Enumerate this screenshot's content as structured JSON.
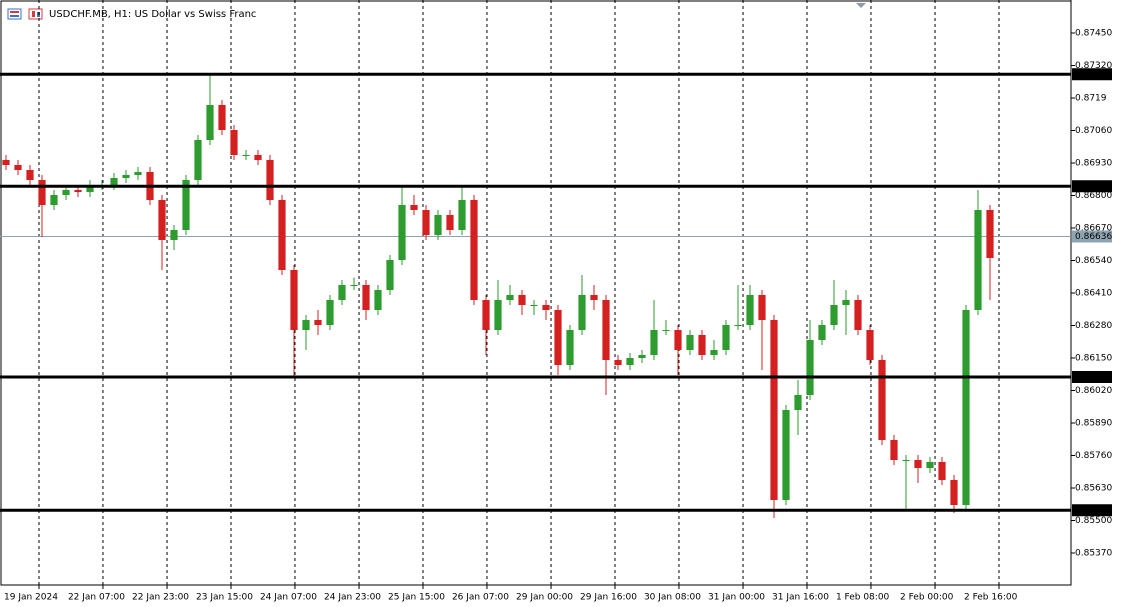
{
  "chart_data": {
    "type": "candlestick",
    "title": "USDCHF.MB, H1:  US Dollar vs Swiss Franc",
    "up_color": "#2e9b2e",
    "down_color": "#d42020",
    "open": [
      0.86942,
      0.86922,
      0.86902,
      0.86862,
      0.86762,
      0.86802,
      0.86822,
      0.86814,
      0.86842,
      0.86842,
      0.8687,
      0.86882,
      0.86894,
      0.86782,
      0.86622,
      0.86662,
      0.86862,
      0.87022,
      0.87162,
      0.87062,
      0.86962,
      0.86962,
      0.86942,
      0.86782,
      0.86502,
      0.86262,
      0.86302,
      0.86282,
      0.86382,
      0.86442,
      0.86442,
      0.86342,
      0.86422,
      0.86542,
      0.86762,
      0.86742,
      0.86642,
      0.86722,
      0.86662,
      0.86782,
      0.86382,
      0.86262,
      0.86382,
      0.86402,
      0.86362,
      0.86362,
      0.86342,
      0.86122,
      0.86262,
      0.86402,
      0.86382,
      0.86142,
      0.86122,
      0.8615,
      0.86162,
      0.86262,
      0.86262,
      0.86182,
      0.86242,
      0.86162,
      0.86182,
      0.86282,
      0.86282,
      0.86402,
      0.86302,
      0.85582,
      0.85942,
      0.86002,
      0.86222,
      0.86282,
      0.86362,
      0.86382,
      0.86262,
      0.86142,
      0.85822,
      0.85742,
      0.85742,
      0.8571,
      0.85734,
      0.85662,
      0.85562,
      0.86342,
      0.86742
    ],
    "high": [
      0.86962,
      0.86942,
      0.86922,
      0.86882,
      0.86822,
      0.86842,
      0.86842,
      0.86862,
      0.86862,
      0.8689,
      0.86902,
      0.86914,
      0.86914,
      0.86802,
      0.86682,
      0.86882,
      0.87042,
      0.87282,
      0.87182,
      0.87082,
      0.86982,
      0.86982,
      0.86962,
      0.86802,
      0.86522,
      0.86322,
      0.86342,
      0.86402,
      0.86462,
      0.86472,
      0.86462,
      0.86442,
      0.86562,
      0.86842,
      0.86802,
      0.86762,
      0.86742,
      0.86742,
      0.86842,
      0.86802,
      0.86402,
      0.86462,
      0.86442,
      0.86422,
      0.86382,
      0.86382,
      0.86362,
      0.86282,
      0.86482,
      0.86442,
      0.86402,
      0.86162,
      0.8617,
      0.86182,
      0.86382,
      0.86302,
      0.86282,
      0.86262,
      0.86262,
      0.86222,
      0.86302,
      0.86442,
      0.86442,
      0.86422,
      0.86322,
      0.85962,
      0.86062,
      0.86302,
      0.86302,
      0.86462,
      0.86422,
      0.86402,
      0.86282,
      0.86162,
      0.85842,
      0.85762,
      0.85762,
      0.85754,
      0.85754,
      0.85682,
      0.86362,
      0.86822,
      0.86762
    ],
    "low": [
      0.86902,
      0.86882,
      0.86842,
      0.86634,
      0.86742,
      0.86782,
      0.86794,
      0.86794,
      0.86822,
      0.86822,
      0.8685,
      0.86862,
      0.86762,
      0.86502,
      0.86582,
      0.86642,
      0.86842,
      0.87002,
      0.87042,
      0.86942,
      0.86942,
      0.86922,
      0.86762,
      0.86482,
      0.8607,
      0.86182,
      0.86242,
      0.86262,
      0.86362,
      0.86422,
      0.86302,
      0.86322,
      0.86402,
      0.86522,
      0.86722,
      0.86622,
      0.86622,
      0.86642,
      0.86642,
      0.86362,
      0.86162,
      0.86242,
      0.86362,
      0.86322,
      0.86322,
      0.86302,
      0.86082,
      0.86102,
      0.86242,
      0.86342,
      0.86002,
      0.86102,
      0.86102,
      0.8613,
      0.86142,
      0.86242,
      0.86082,
      0.86162,
      0.86142,
      0.86142,
      0.86162,
      0.86262,
      0.86262,
      0.86102,
      0.8551,
      0.85562,
      0.85842,
      0.85982,
      0.86202,
      0.86262,
      0.86242,
      0.86242,
      0.86122,
      0.85802,
      0.85722,
      0.85542,
      0.8565,
      0.8569,
      0.85642,
      0.8553,
      0.85542,
      0.86322,
      0.86382
    ],
    "close": [
      0.86922,
      0.86902,
      0.86862,
      0.86762,
      0.86802,
      0.86822,
      0.86814,
      0.86842,
      0.86842,
      0.8687,
      0.86882,
      0.86894,
      0.86782,
      0.86622,
      0.86662,
      0.86862,
      0.87022,
      0.87162,
      0.87062,
      0.86962,
      0.86962,
      0.86942,
      0.86782,
      0.86502,
      0.86262,
      0.86302,
      0.86282,
      0.86382,
      0.86442,
      0.86442,
      0.86342,
      0.86422,
      0.86542,
      0.86762,
      0.86742,
      0.86642,
      0.86722,
      0.86662,
      0.86782,
      0.86382,
      0.86262,
      0.86382,
      0.86402,
      0.86362,
      0.86362,
      0.86342,
      0.86122,
      0.86262,
      0.86402,
      0.86382,
      0.86142,
      0.86122,
      0.8615,
      0.86162,
      0.86262,
      0.86262,
      0.86182,
      0.86242,
      0.86162,
      0.86182,
      0.86282,
      0.86282,
      0.86402,
      0.86302,
      0.85582,
      0.85942,
      0.86002,
      0.86222,
      0.86282,
      0.86362,
      0.86382,
      0.86262,
      0.86142,
      0.85822,
      0.85742,
      0.85742,
      0.8571,
      0.85734,
      0.85662,
      0.85562,
      0.86342,
      0.86742,
      0.8655
    ],
    "xlim": [
      -0.5,
      88.75
    ],
    "xticks": [
      {
        "value": 2.75,
        "label": "19 Jan 2024"
      },
      {
        "value": 8.08,
        "label": "22 Jan 07:00"
      },
      {
        "value": 13.42,
        "label": "22 Jan 23:00"
      },
      {
        "value": 18.75,
        "label": "23 Jan 15:00"
      },
      {
        "value": 24.08,
        "label": "24 Jan 07:00"
      },
      {
        "value": 29.42,
        "label": "24 Jan 23:00"
      },
      {
        "value": 34.75,
        "label": "25 Jan 15:00"
      },
      {
        "value": 40.08,
        "label": "26 Jan 07:00"
      },
      {
        "value": 45.42,
        "label": "29 Jan 00:00"
      },
      {
        "value": 50.75,
        "label": "29 Jan 16:00"
      },
      {
        "value": 56.08,
        "label": "30 Jan 08:00"
      },
      {
        "value": 61.42,
        "label": "31 Jan 00:00"
      },
      {
        "value": 66.75,
        "label": "31 Jan 16:00"
      },
      {
        "value": 72.08,
        "label": "1 Feb 08:00"
      },
      {
        "value": 77.42,
        "label": "2 Feb 00:00"
      },
      {
        "value": 82.75,
        "label": "2 Feb 16:00"
      }
    ],
    "ylim": [
      0.85242,
      0.87582
    ],
    "yticks": [
      {
        "value": 0.8745,
        "label": "0.87450"
      },
      {
        "value": 0.8732,
        "label": "0.87320"
      },
      0.8719,
      {
        "value": 0.8706,
        "label": "0.87060"
      },
      {
        "value": 0.8693,
        "label": "0.86930"
      },
      {
        "value": 0.868,
        "label": "0.86800"
      },
      {
        "value": 0.8667,
        "label": "0.86670"
      },
      {
        "value": 0.8654,
        "label": "0.86540"
      },
      {
        "value": 0.8641,
        "label": "0.86410"
      },
      {
        "value": 0.8628,
        "label": "0.86280"
      },
      {
        "value": 0.8615,
        "label": "0.86150"
      },
      {
        "value": 0.8602,
        "label": "0.86020"
      },
      {
        "value": 0.8589,
        "label": "0.85890"
      },
      {
        "value": 0.8576,
        "label": "0.85760"
      },
      {
        "value": 0.8563,
        "label": "0.85630"
      },
      {
        "value": 0.855,
        "label": "0.85500"
      },
      {
        "value": 0.8537,
        "label": "0.85370"
      }
    ],
    "levels": [
      0.87285,
      0.86837,
      0.86074,
      0.85541
    ],
    "current_price": 0.86636
  }
}
